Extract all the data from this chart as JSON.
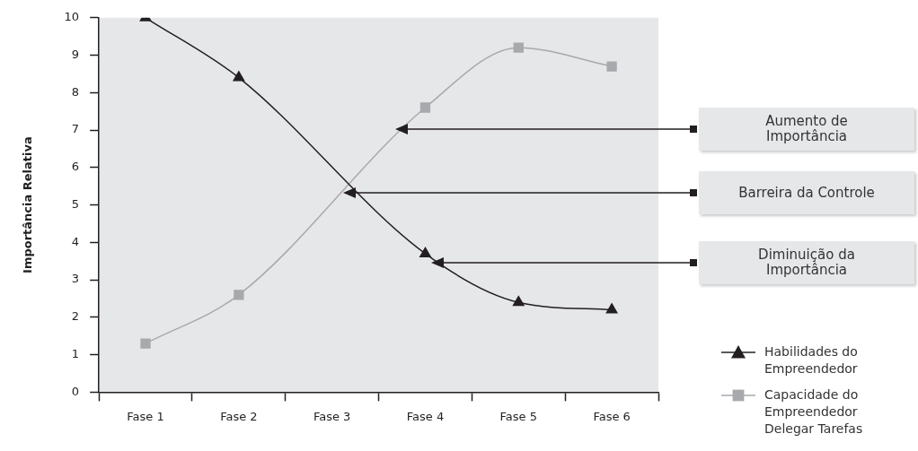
{
  "chart_data": {
    "type": "line",
    "ylabel": "Importância Relativa",
    "categories": [
      "Fase 1",
      "Fase 2",
      "Fase 3",
      "Fase 4",
      "Fase 5",
      "Fase 6"
    ],
    "series": [
      {
        "name": "Habilidades do Empreendedor",
        "color": "#231f20",
        "marker": "triangle",
        "values": [
          10,
          8.4,
          null,
          3.7,
          2.4,
          2.2
        ]
      },
      {
        "name": "Capacidade do Empreendedor Delegar Tarefas",
        "color": "#a7a9ac",
        "marker": "square",
        "values": [
          1.3,
          2.6,
          null,
          7.6,
          9.2,
          8.7
        ]
      }
    ],
    "ylim": [
      0,
      10
    ],
    "yticks": [
      0,
      1,
      2,
      3,
      4,
      5,
      6,
      7,
      8,
      9,
      10
    ],
    "grid": false,
    "legend": "bottom right",
    "annotations": [
      "Aumento de Importância",
      "Barreira da Controle",
      "Diminuição da Importância"
    ]
  }
}
